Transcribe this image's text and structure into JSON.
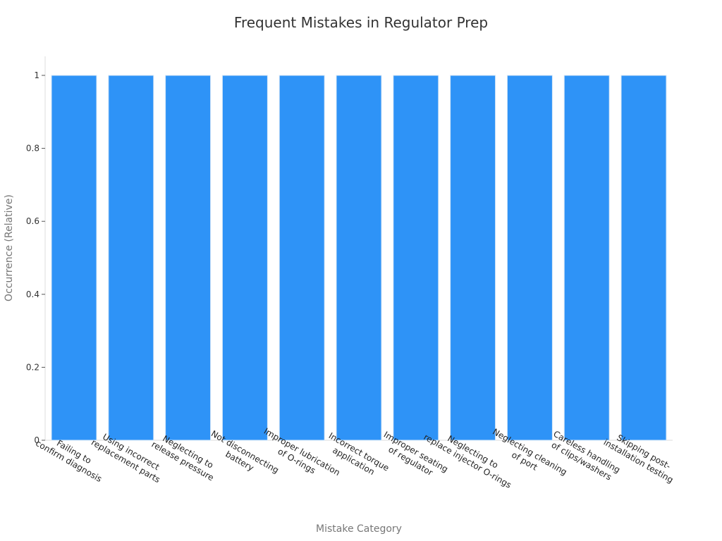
{
  "chart_data": {
    "type": "bar",
    "title": "Frequent Mistakes in Regulator Prep",
    "xlabel": "Mistake Category",
    "ylabel": "Occurrence (Relative)",
    "ylim": [
      0,
      1
    ],
    "yticks": [
      0,
      0.2,
      0.4,
      0.6,
      0.8,
      1
    ],
    "ytick_labels": [
      "0",
      "0.2",
      "0.4",
      "0.6",
      "0.8",
      "1"
    ],
    "grid": false,
    "bar_color": "#2e93f7",
    "categories": [
      [
        "Failing to",
        "confirm diagnosis"
      ],
      [
        "Using incorrect",
        "replacement parts"
      ],
      [
        "Neglecting to",
        "release pressure"
      ],
      [
        "Not disconnecting",
        "battery"
      ],
      [
        "Improper lubrication",
        "of O-rings"
      ],
      [
        "Incorrect torque",
        "application"
      ],
      [
        "Improper seating",
        "of regulator"
      ],
      [
        "Neglecting to",
        "replace injector O-rings"
      ],
      [
        "Neglecting cleaning",
        "of port"
      ],
      [
        "Careless handling",
        "of clips/washers"
      ],
      [
        "Skipping post-",
        "installation testing"
      ]
    ],
    "values": [
      1,
      1,
      1,
      1,
      1,
      1,
      1,
      1,
      1,
      1,
      1
    ]
  }
}
